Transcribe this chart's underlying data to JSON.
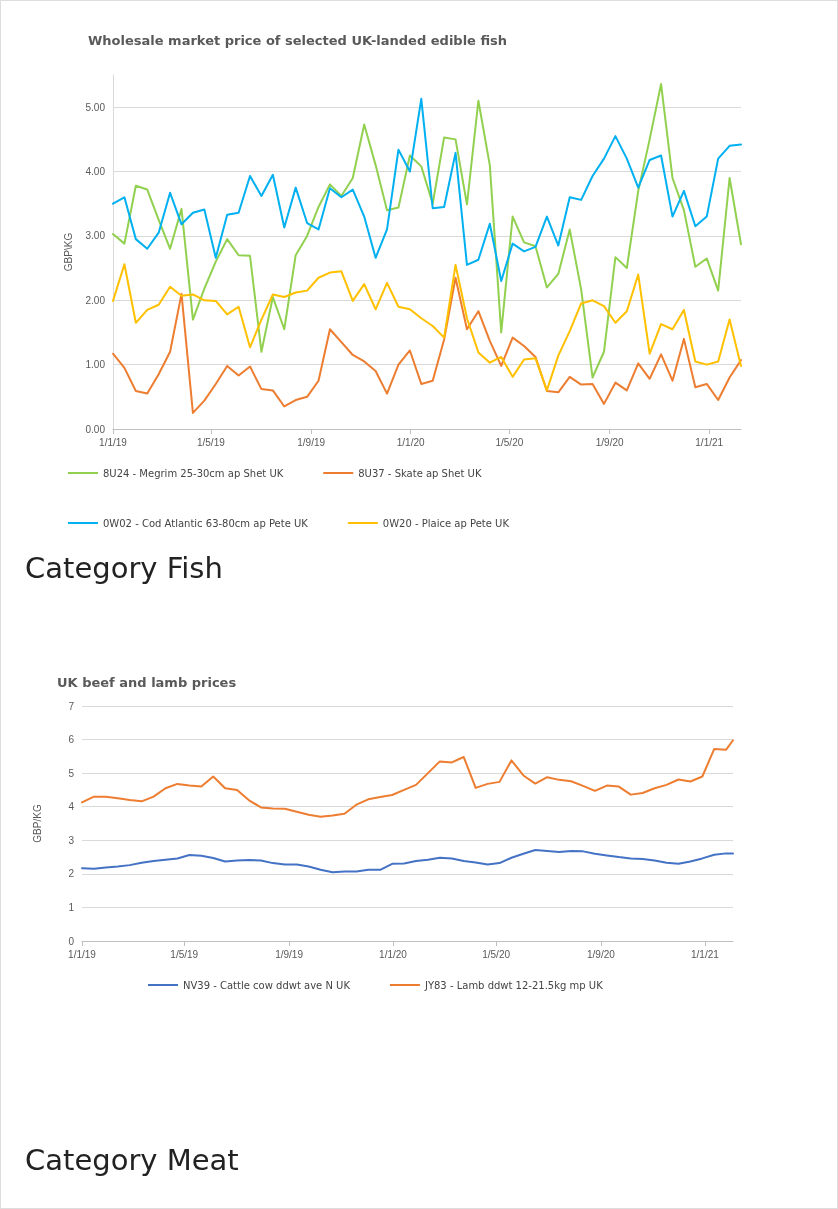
{
  "chart_data": [
    {
      "type": "line",
      "title": "Wholesale market price of selected UK-landed edible fish",
      "ylabel": "GBP\\KG",
      "annotations": [
        "Category Fish"
      ],
      "x": [
        "2019-01-01",
        "2019-01-15",
        "2019-01-29",
        "2019-02-12",
        "2019-02-26",
        "2019-03-12",
        "2019-03-26",
        "2019-04-09",
        "2019-04-23",
        "2019-05-07",
        "2019-05-21",
        "2019-06-04",
        "2019-06-18",
        "2019-07-02",
        "2019-07-16",
        "2019-07-30",
        "2019-08-13",
        "2019-08-27",
        "2019-09-10",
        "2019-09-24",
        "2019-10-08",
        "2019-10-22",
        "2019-11-05",
        "2019-11-19",
        "2019-12-03",
        "2019-12-17",
        "2019-12-31",
        "2020-01-14",
        "2020-01-28",
        "2020-02-11",
        "2020-02-25",
        "2020-03-10",
        "2020-03-24",
        "2020-04-07",
        "2020-04-21",
        "2020-05-05",
        "2020-05-19",
        "2020-06-02",
        "2020-06-16",
        "2020-06-30",
        "2020-07-14",
        "2020-07-28",
        "2020-08-11",
        "2020-08-25",
        "2020-09-08",
        "2020-09-22",
        "2020-10-06",
        "2020-10-20",
        "2020-11-03",
        "2020-11-17",
        "2020-12-01",
        "2020-12-15",
        "2020-12-29",
        "2021-01-12",
        "2021-01-26",
        "2021-02-09"
      ],
      "series": [
        {
          "name": "8U24 - Megrim 25-30cm ap Shet UK",
          "color": "#92d050",
          "values": [
            3.03,
            2.88,
            3.78,
            3.72,
            3.25,
            2.8,
            3.42,
            1.7,
            2.18,
            2.6,
            2.95,
            2.7,
            2.69,
            1.2,
            2.05,
            1.55,
            2.7,
            3.0,
            3.45,
            3.8,
            3.62,
            3.9,
            4.73,
            4.1,
            3.4,
            3.44,
            4.25,
            4.08,
            3.5,
            4.53,
            4.5,
            3.49,
            5.1,
            4.1,
            1.5,
            3.3,
            2.9,
            2.84,
            2.2,
            2.41,
            3.1,
            2.17,
            0.8,
            1.2,
            2.67,
            2.5,
            3.7,
            4.5,
            5.36,
            3.9,
            3.4,
            2.52,
            2.65,
            2.15,
            3.9,
            2.87
          ]
        },
        {
          "name": "8U37 - Skate ap Shet UK",
          "color": "#ed7d31",
          "values": [
            1.17,
            0.95,
            0.59,
            0.55,
            0.85,
            1.2,
            2.1,
            0.25,
            0.44,
            0.7,
            0.98,
            0.83,
            0.97,
            0.62,
            0.6,
            0.35,
            0.45,
            0.5,
            0.75,
            1.55,
            1.35,
            1.15,
            1.05,
            0.9,
            0.55,
            1.0,
            1.22,
            0.7,
            0.75,
            1.39,
            2.35,
            1.55,
            1.83,
            1.37,
            0.98,
            1.42,
            1.29,
            1.12,
            0.59,
            0.57,
            0.81,
            0.69,
            0.7,
            0.39,
            0.72,
            0.6,
            1.02,
            0.78,
            1.16,
            0.75,
            1.4,
            0.65,
            0.7,
            0.45,
            0.8,
            1.07
          ]
        },
        {
          "name": "0W02 - Cod Atlantic 63-80cm ap Pete UK",
          "color": "#00b0f0",
          "values": [
            3.5,
            3.6,
            2.95,
            2.8,
            3.05,
            3.67,
            3.18,
            3.36,
            3.41,
            2.66,
            3.33,
            3.36,
            3.93,
            3.62,
            3.95,
            3.13,
            3.75,
            3.2,
            3.1,
            3.74,
            3.6,
            3.72,
            3.3,
            2.66,
            3.1,
            4.34,
            4.0,
            5.13,
            3.43,
            3.45,
            4.29,
            2.55,
            2.63,
            3.19,
            2.3,
            2.88,
            2.76,
            2.83,
            3.3,
            2.85,
            3.6,
            3.56,
            3.93,
            4.2,
            4.55,
            4.2,
            3.75,
            4.18,
            4.25,
            3.3,
            3.7,
            3.15,
            3.3,
            4.2,
            4.4,
            4.42
          ]
        },
        {
          "name": "0W20 - Plaice ap Pete UK",
          "color": "#ffc000",
          "values": [
            1.99,
            2.56,
            1.65,
            1.85,
            1.93,
            2.21,
            2.07,
            2.09,
            2.0,
            1.99,
            1.78,
            1.9,
            1.27,
            1.7,
            2.09,
            2.05,
            2.12,
            2.15,
            2.35,
            2.43,
            2.45,
            1.99,
            2.25,
            1.86,
            2.27,
            1.9,
            1.86,
            1.72,
            1.6,
            1.42,
            2.55,
            1.72,
            1.19,
            1.03,
            1.12,
            0.81,
            1.08,
            1.1,
            0.6,
            1.14,
            1.52,
            1.95,
            2.0,
            1.91,
            1.65,
            1.83,
            2.4,
            1.17,
            1.63,
            1.55,
            1.85,
            1.05,
            1.0,
            1.05,
            1.7,
            0.98
          ]
        }
      ],
      "xlim": [
        "2019-01-01",
        "2021-02-09"
      ],
      "xticks": [
        {
          "value": "2019-01-01",
          "label": "1/1/19"
        },
        {
          "value": "2019-05-01",
          "label": "1/5/19"
        },
        {
          "value": "2019-09-01",
          "label": "1/9/19"
        },
        {
          "value": "2020-01-01",
          "label": "1/1/20"
        },
        {
          "value": "2020-05-01",
          "label": "1/5/20"
        },
        {
          "value": "2020-09-01",
          "label": "1/9/20"
        },
        {
          "value": "2021-01-01",
          "label": "1/1/21"
        }
      ],
      "ylim": [
        0,
        5.5
      ],
      "yticks": [
        {
          "value": 0,
          "label": "0.00"
        },
        {
          "value": 1,
          "label": "1.00"
        },
        {
          "value": 2,
          "label": "2.00"
        },
        {
          "value": 3,
          "label": "3.00"
        },
        {
          "value": 4,
          "label": "4.00"
        },
        {
          "value": 5,
          "label": "5.00"
        }
      ],
      "grid": "y",
      "legend": "bottom",
      "marker": "none",
      "line_style": "solid"
    },
    {
      "type": "line",
      "title": "UK beef and lamb prices",
      "ylabel": "GBP/KG",
      "annotations": [
        "Category Meat"
      ],
      "x": [
        "2019-01-01",
        "2019-01-15",
        "2019-01-29",
        "2019-02-12",
        "2019-02-26",
        "2019-03-12",
        "2019-03-26",
        "2019-04-09",
        "2019-04-23",
        "2019-05-07",
        "2019-05-21",
        "2019-06-04",
        "2019-06-18",
        "2019-07-02",
        "2019-07-16",
        "2019-07-30",
        "2019-08-13",
        "2019-08-27",
        "2019-09-10",
        "2019-09-24",
        "2019-10-08",
        "2019-10-22",
        "2019-11-05",
        "2019-11-19",
        "2019-12-03",
        "2019-12-17",
        "2019-12-31",
        "2020-01-14",
        "2020-01-28",
        "2020-02-11",
        "2020-02-25",
        "2020-03-10",
        "2020-03-24",
        "2020-04-07",
        "2020-04-21",
        "2020-05-05",
        "2020-05-19",
        "2020-06-02",
        "2020-06-16",
        "2020-06-30",
        "2020-07-14",
        "2020-07-28",
        "2020-08-11",
        "2020-08-25",
        "2020-09-08",
        "2020-09-22",
        "2020-10-06",
        "2020-10-20",
        "2020-11-03",
        "2020-11-17",
        "2020-12-01",
        "2020-12-15",
        "2020-12-29",
        "2021-01-12",
        "2021-01-26",
        "2021-02-03"
      ],
      "series": [
        {
          "name": "NV39 - Cattle cow ddwt ave N UK",
          "color": "#4472c4",
          "values": [
            2.17,
            2.15,
            2.19,
            2.22,
            2.26,
            2.33,
            2.38,
            2.42,
            2.46,
            2.56,
            2.54,
            2.47,
            2.37,
            2.4,
            2.41,
            2.4,
            2.32,
            2.28,
            2.28,
            2.22,
            2.12,
            2.05,
            2.07,
            2.07,
            2.12,
            2.12,
            2.3,
            2.31,
            2.38,
            2.42,
            2.48,
            2.46,
            2.38,
            2.34,
            2.28,
            2.32,
            2.48,
            2.6,
            2.71,
            2.68,
            2.65,
            2.68,
            2.67,
            2.6,
            2.55,
            2.5,
            2.46,
            2.44,
            2.4,
            2.33,
            2.3,
            2.37,
            2.46,
            2.57,
            2.61,
            2.61
          ]
        },
        {
          "name": "JY83 - Lamb ddwt 12-21.5kg mp UK",
          "color": "#ed7d31",
          "values": [
            4.13,
            4.3,
            4.3,
            4.25,
            4.2,
            4.16,
            4.3,
            4.55,
            4.68,
            4.63,
            4.6,
            4.9,
            4.55,
            4.5,
            4.19,
            3.98,
            3.95,
            3.94,
            3.85,
            3.76,
            3.7,
            3.74,
            3.79,
            4.06,
            4.22,
            4.29,
            4.35,
            4.5,
            4.65,
            5.0,
            5.35,
            5.32,
            5.48,
            4.56,
            4.68,
            4.74,
            5.38,
            4.93,
            4.69,
            4.88,
            4.8,
            4.76,
            4.62,
            4.47,
            4.63,
            4.6,
            4.36,
            4.41,
            4.55,
            4.65,
            4.81,
            4.75,
            4.9,
            5.72,
            5.7,
            5.98
          ]
        }
      ],
      "xlim": [
        "2019-01-01",
        "2021-02-03"
      ],
      "xticks": [
        {
          "value": "2019-01-01",
          "label": "1/1/19"
        },
        {
          "value": "2019-05-01",
          "label": "1/5/19"
        },
        {
          "value": "2019-09-01",
          "label": "1/9/19"
        },
        {
          "value": "2020-01-01",
          "label": "1/1/20"
        },
        {
          "value": "2020-05-01",
          "label": "1/5/20"
        },
        {
          "value": "2020-09-01",
          "label": "1/9/20"
        },
        {
          "value": "2021-01-01",
          "label": "1/1/21"
        }
      ],
      "ylim": [
        0,
        7
      ],
      "yticks": [
        0,
        1,
        2,
        3,
        4,
        5,
        6,
        7
      ],
      "grid": "y",
      "legend": "bottom",
      "marker": "none",
      "line_style": "solid"
    }
  ]
}
